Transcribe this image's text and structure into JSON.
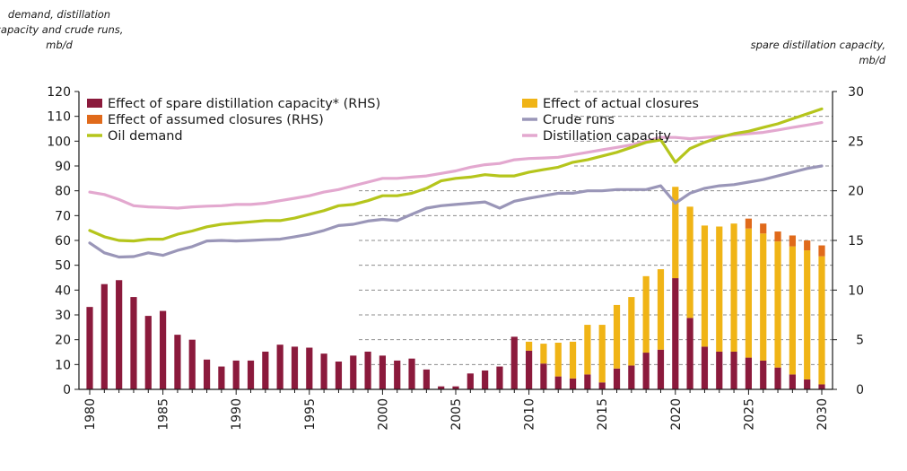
{
  "chart_data": {
    "type": "bar",
    "left_axis_title": [
      "demand, distillation",
      "capacity and crude runs,",
      "mb/d"
    ],
    "right_axis_title": [
      "spare distillation capacity,",
      "mb/d"
    ],
    "x": [
      1980,
      1981,
      1982,
      1983,
      1984,
      1985,
      1986,
      1987,
      1988,
      1989,
      1990,
      1991,
      1992,
      1993,
      1994,
      1995,
      1996,
      1997,
      1998,
      1999,
      2000,
      2001,
      2002,
      2003,
      2004,
      2005,
      2006,
      2007,
      2008,
      2009,
      2010,
      2011,
      2012,
      2013,
      2014,
      2015,
      2016,
      2017,
      2018,
      2019,
      2020,
      2021,
      2022,
      2023,
      2024,
      2025,
      2026,
      2027,
      2028,
      2029,
      2030
    ],
    "x_tick_labels": [
      "1980",
      "1985",
      "1990",
      "1995",
      "2000",
      "2005",
      "2010",
      "2015",
      "2020",
      "2025",
      "2030"
    ],
    "ylim_left": [
      0,
      120
    ],
    "yticks_left": [
      0,
      10,
      20,
      30,
      40,
      50,
      60,
      70,
      80,
      90,
      100,
      110,
      120
    ],
    "ylim_right": [
      0,
      30
    ],
    "yticks_right": [
      0,
      5,
      10,
      15,
      20,
      25,
      30
    ],
    "gridlines": "dashed, right side only",
    "legend_position": "top-left",
    "colors": {
      "spare": "#8b1a3c",
      "assumed": "#e06a1b",
      "actual": "#f0b416",
      "demand": "#b5c51c",
      "crude": "#9a96b8",
      "capacity": "#e3a8cf"
    },
    "series": [
      {
        "name": "Effect of spare distillation capacity* (RHS)",
        "kind": "bar",
        "axis": "right",
        "color_key": "spare",
        "values": [
          8.3,
          10.6,
          11,
          9.3,
          7.4,
          7.9,
          5.5,
          5,
          3,
          2.3,
          2.9,
          2.9,
          3.8,
          4.5,
          4.3,
          4.2,
          3.6,
          2.8,
          3.4,
          3.8,
          3.4,
          2.9,
          3.1,
          2,
          0.3,
          0.3,
          1.6,
          1.9,
          2.3,
          5.3,
          3.9,
          2.6,
          1.3,
          1.1,
          1.5,
          0.7,
          2.1,
          2.4,
          3.7,
          4,
          11.2,
          7.2,
          4.3,
          3.8,
          3.8,
          3.2,
          2.9,
          2.2,
          1.5,
          1,
          0.5
        ]
      },
      {
        "name": "Effect of actual closures",
        "kind": "bar",
        "axis": "right",
        "color_key": "actual",
        "values": [
          0,
          0,
          0,
          0,
          0,
          0,
          0,
          0,
          0,
          0,
          0,
          0,
          0,
          0,
          0,
          0,
          0,
          0,
          0,
          0,
          0,
          0,
          0,
          0,
          0,
          0,
          0,
          0,
          0,
          0,
          0.9,
          2,
          3.4,
          3.7,
          5,
          5.8,
          6.4,
          6.9,
          7.7,
          8.1,
          9.2,
          11.2,
          12.2,
          12.6,
          12.9,
          13,
          12.8,
          12.7,
          12.9,
          13,
          12.9
        ]
      },
      {
        "name": "Effect of assumed closures (RHS)",
        "kind": "bar",
        "axis": "right",
        "color_key": "assumed",
        "values": [
          0,
          0,
          0,
          0,
          0,
          0,
          0,
          0,
          0,
          0,
          0,
          0,
          0,
          0,
          0,
          0,
          0,
          0,
          0,
          0,
          0,
          0,
          0,
          0,
          0,
          0,
          0,
          0,
          0,
          0,
          0,
          0,
          0,
          0,
          0,
          0,
          0,
          0,
          0,
          0,
          0,
          0,
          0,
          0,
          0,
          1,
          1,
          1,
          1.1,
          1,
          1.1
        ]
      },
      {
        "name": "Crude runs",
        "kind": "line",
        "axis": "left",
        "color_key": "crude",
        "values": [
          59,
          55,
          53.3,
          53.5,
          55,
          54,
          56,
          57.5,
          59.8,
          60,
          59.8,
          60,
          60.3,
          60.5,
          61.5,
          62.5,
          64,
          66,
          66.5,
          67.8,
          68.5,
          68,
          70.5,
          73,
          74,
          74.5,
          75,
          75.5,
          73,
          75.8,
          77,
          78,
          79,
          79,
          80,
          80,
          80.5,
          80.5,
          80.5,
          82,
          75,
          79,
          81,
          82,
          82.5,
          83.5,
          84.5,
          86,
          87.5,
          89,
          90
        ]
      },
      {
        "name": "Oil demand",
        "kind": "line",
        "axis": "left",
        "color_key": "demand",
        "values": [
          64,
          61.5,
          60,
          59.8,
          60.5,
          60.5,
          62.5,
          63.8,
          65.5,
          66.5,
          67,
          67.5,
          68,
          68,
          69,
          70.5,
          72,
          74,
          74.5,
          76,
          78,
          78,
          79,
          81,
          84,
          85,
          85.5,
          86.5,
          86,
          86,
          87.5,
          88.5,
          89.5,
          91.5,
          92.5,
          94,
          95.5,
          97.5,
          99.5,
          100.5,
          91.5,
          97,
          99.5,
          101.5,
          103,
          104,
          105.5,
          107,
          109,
          111,
          113
        ]
      },
      {
        "name": "Distillation capacity",
        "kind": "line",
        "axis": "left",
        "color_key": "capacity",
        "values": [
          79.5,
          78.5,
          76.5,
          74,
          73.5,
          73.3,
          73,
          73.5,
          73.8,
          74,
          74.5,
          74.5,
          75,
          76,
          77,
          78,
          79.5,
          80.5,
          82,
          83.5,
          85,
          85,
          85.5,
          86,
          87,
          88,
          89.5,
          90.5,
          91,
          92.5,
          93,
          93.2,
          93.5,
          94.5,
          95.5,
          96.5,
          97.5,
          98.5,
          100,
          101.5,
          101.5,
          101,
          101.5,
          102,
          102.5,
          103,
          103.5,
          104.5,
          105.5,
          106.5,
          107.5
        ]
      }
    ],
    "legend": [
      {
        "series": "Effect of spare distillation capacity* (RHS)",
        "marker": "rect",
        "color_key": "spare"
      },
      {
        "series": "Effect of actual closures",
        "marker": "rect",
        "color_key": "actual"
      },
      {
        "series": "Effect of assumed closures (RHS)",
        "marker": "rect",
        "color_key": "assumed"
      },
      {
        "series": "Crude runs",
        "marker": "line",
        "color_key": "crude"
      },
      {
        "series": "Oil demand",
        "marker": "line",
        "color_key": "demand"
      },
      {
        "series": "Distillation capacity",
        "marker": "line",
        "color_key": "capacity"
      }
    ]
  }
}
